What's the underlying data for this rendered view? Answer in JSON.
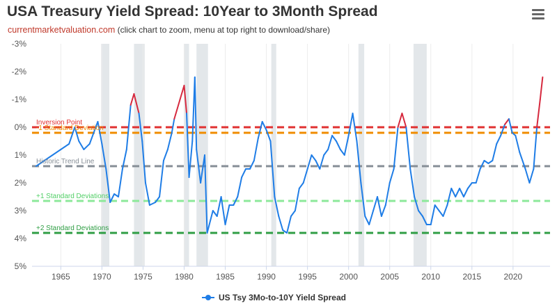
{
  "header": {
    "title": "USA Treasury Yield Spread: 10Year to 3Month Spread",
    "site": "currentmarketvaluation.com",
    "note": "(click chart to zoom, menu at top right to download/share)"
  },
  "menu": {
    "icon": "hamburger-menu-icon"
  },
  "chart_data": {
    "type": "line",
    "title": "USA Treasury Yield Spread: 10Year to 3Month Spread",
    "xlim": [
      1961.5,
      2024.5
    ],
    "ylim": [
      -3,
      5
    ],
    "y_inverted": true,
    "x_ticks": [
      1965,
      1970,
      1975,
      1980,
      1985,
      1990,
      1995,
      2000,
      2005,
      2010,
      2015,
      2020
    ],
    "x_tick_labels": [
      "1965",
      "1970",
      "1975",
      "1980",
      "1985",
      "1990",
      "1995",
      "2000",
      "2005",
      "2010",
      "2015",
      "2020"
    ],
    "y_ticks": [
      -3,
      -2,
      -1,
      0,
      1,
      2,
      3,
      4,
      5
    ],
    "y_tick_labels": [
      "-3%",
      "-2%",
      "-1%",
      "0%",
      "1%",
      "2%",
      "3%",
      "4%",
      "5%"
    ],
    "grid": "vertical",
    "legend_position": "bottom-center",
    "recessions": [
      [
        1969.9,
        1970.9
      ],
      [
        1973.9,
        1975.2
      ],
      [
        1980.0,
        1980.6
      ],
      [
        1981.5,
        1982.9
      ],
      [
        1990.6,
        1991.2
      ],
      [
        2001.2,
        2001.9
      ],
      [
        2007.9,
        2009.5
      ]
    ],
    "reference_lines": [
      {
        "name": "Inversion Point",
        "value": 0,
        "color": "#e03131"
      },
      {
        "name": "-1 Standard Deviation",
        "value": 0.2,
        "color": "#f08c00"
      },
      {
        "name": "Historic Trend Line",
        "value": 1.4,
        "color": "#868e96"
      },
      {
        "name": "+1 Standard Deviations",
        "value": 2.65,
        "color": "#8ce99a"
      },
      {
        "name": "+2 Standard Deviations",
        "value": 3.8,
        "color": "#2f9e44"
      }
    ],
    "series": [
      {
        "name": "US Tsy 3Mo-to-10Y Yield Spread",
        "color": "#1f7de6",
        "inverted_color": "#d6293e",
        "x": [
          1962.0,
          1963.0,
          1964.0,
          1965.0,
          1966.0,
          1966.7,
          1967.2,
          1967.8,
          1968.5,
          1969.0,
          1969.5,
          1970.0,
          1970.5,
          1971.0,
          1971.5,
          1972.0,
          1972.5,
          1973.0,
          1973.5,
          1973.9,
          1974.5,
          1974.9,
          1975.3,
          1975.8,
          1976.5,
          1977.0,
          1977.5,
          1978.0,
          1978.5,
          1978.8,
          1979.5,
          1980.0,
          1980.3,
          1980.6,
          1981.0,
          1981.3,
          1981.5,
          1982.0,
          1982.5,
          1982.8,
          1983.5,
          1984.0,
          1984.5,
          1985.0,
          1985.5,
          1986.0,
          1986.5,
          1987.0,
          1987.5,
          1988.0,
          1988.5,
          1989.0,
          1989.5,
          1990.0,
          1990.5,
          1991.0,
          1991.5,
          1992.0,
          1992.5,
          1993.0,
          1993.5,
          1994.0,
          1994.5,
          1995.0,
          1995.5,
          1996.0,
          1996.5,
          1997.0,
          1997.5,
          1998.0,
          1998.5,
          1999.0,
          1999.5,
          2000.0,
          2000.5,
          2001.0,
          2001.5,
          2002.0,
          2002.5,
          2003.0,
          2003.5,
          2004.0,
          2004.5,
          2005.0,
          2005.5,
          2006.0,
          2006.5,
          2007.0,
          2007.5,
          2008.0,
          2008.5,
          2009.0,
          2009.5,
          2010.0,
          2010.5,
          2011.0,
          2011.5,
          2012.0,
          2012.5,
          2013.0,
          2013.5,
          2014.0,
          2014.5,
          2015.0,
          2015.5,
          2016.0,
          2016.5,
          2017.0,
          2017.5,
          2018.0,
          2018.5,
          2019.0,
          2019.5,
          2019.9,
          2020.3,
          2020.8,
          2021.5,
          2022.0,
          2022.5,
          2022.9,
          2023.3,
          2023.6
        ],
        "y": [
          1.4,
          1.2,
          1.0,
          0.8,
          0.6,
          0.0,
          0.5,
          0.8,
          0.6,
          0.2,
          -0.2,
          0.6,
          1.5,
          2.7,
          2.4,
          2.5,
          1.5,
          0.8,
          -0.8,
          -1.2,
          -0.5,
          0.5,
          2.0,
          2.8,
          2.7,
          2.5,
          1.2,
          0.8,
          0.2,
          -0.3,
          -1.0,
          -1.5,
          -0.5,
          1.8,
          0.5,
          -1.8,
          0.8,
          2.0,
          1.0,
          3.8,
          3.0,
          3.2,
          2.5,
          3.5,
          2.8,
          2.8,
          2.5,
          1.8,
          1.5,
          1.5,
          1.2,
          0.4,
          -0.2,
          0.1,
          0.5,
          2.5,
          3.2,
          3.7,
          3.8,
          3.2,
          3.0,
          2.2,
          2.0,
          1.5,
          1.0,
          1.2,
          1.5,
          1.0,
          0.8,
          0.3,
          0.5,
          0.8,
          1.0,
          0.3,
          -0.5,
          0.5,
          2.0,
          3.2,
          3.5,
          3.0,
          2.5,
          3.2,
          2.8,
          2.0,
          1.5,
          0.0,
          -0.5,
          0.0,
          1.5,
          2.5,
          3.0,
          3.2,
          3.5,
          3.5,
          2.8,
          3.0,
          3.2,
          2.8,
          2.2,
          2.5,
          2.2,
          2.5,
          2.2,
          2.0,
          2.0,
          1.5,
          1.2,
          1.3,
          1.2,
          0.6,
          0.3,
          -0.1,
          -0.3,
          0.2,
          0.3,
          0.9,
          1.5,
          2.0,
          1.5,
          0.0,
          -1.0,
          -1.8
        ]
      }
    ]
  },
  "legend": {
    "series_label": "US Tsy 3Mo-to-10Y Yield Spread"
  }
}
